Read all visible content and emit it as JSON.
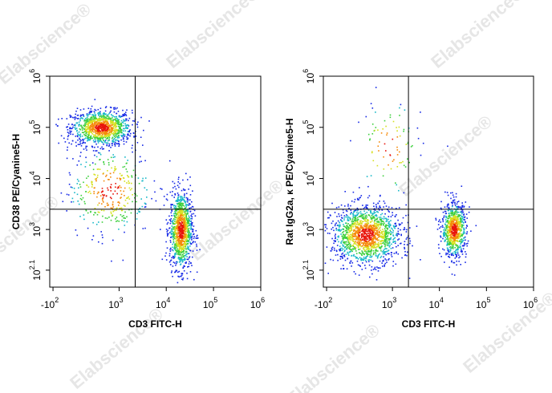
{
  "watermark": "Elabscience®",
  "chart_data": [
    {
      "type": "scatter",
      "x_label": "CD3 FITC-H",
      "y_label": "CD38 PE/Cyanine5-H",
      "scale": "biexponential",
      "xlim": [
        -130,
        1000000
      ],
      "ylim": [
        0,
        1000000
      ],
      "xticks": [
        {
          "value": -100,
          "label": "-10",
          "exponent": "2"
        },
        {
          "value": 1000,
          "label": "10",
          "exponent": "3"
        },
        {
          "value": 10000,
          "label": "10",
          "exponent": "4"
        },
        {
          "value": 100000,
          "label": "10",
          "exponent": "5"
        },
        {
          "value": 1000000,
          "label": "10",
          "exponent": "6"
        }
      ],
      "yticks": [
        {
          "value": 126,
          "label": "10",
          "exponent": "2.1"
        },
        {
          "value": 1000,
          "label": "10",
          "exponent": "3"
        },
        {
          "value": 10000,
          "label": "10",
          "exponent": "4"
        },
        {
          "value": 100000,
          "label": "10",
          "exponent": "5"
        },
        {
          "value": 1000000,
          "label": "10",
          "exponent": "6"
        }
      ],
      "gate_x": 2200,
      "gate_y": 2500,
      "populations": [
        {
          "x": 400,
          "y": 100000,
          "spread_x": 0.32,
          "spread_y": 0.17,
          "count": 1100
        },
        {
          "x": 20000,
          "y": 1000,
          "spread_x": 0.12,
          "spread_y": 0.38,
          "count": 1100
        },
        {
          "x": 600,
          "y": 6000,
          "spread_x": 0.45,
          "spread_y": 0.45,
          "count": 350
        }
      ]
    },
    {
      "type": "scatter",
      "x_label": "CD3 FITC-H",
      "y_label": "Rat IgG2a, κ PE/Cyanine5-H",
      "scale": "biexponential",
      "xlim": [
        -130,
        1000000
      ],
      "ylim": [
        0,
        1000000
      ],
      "xticks": [
        {
          "value": -100,
          "label": "-10",
          "exponent": "2"
        },
        {
          "value": 1000,
          "label": "10",
          "exponent": "3"
        },
        {
          "value": 10000,
          "label": "10",
          "exponent": "4"
        },
        {
          "value": 100000,
          "label": "10",
          "exponent": "5"
        },
        {
          "value": 1000000,
          "label": "10",
          "exponent": "6"
        }
      ],
      "yticks": [
        {
          "value": 126,
          "label": "10",
          "exponent": "2.1"
        },
        {
          "value": 1000,
          "label": "10",
          "exponent": "3"
        },
        {
          "value": 10000,
          "label": "10",
          "exponent": "4"
        },
        {
          "value": 100000,
          "label": "10",
          "exponent": "5"
        },
        {
          "value": 1000000,
          "label": "10",
          "exponent": "6"
        }
      ],
      "gate_x": 2200,
      "gate_y": 2500,
      "populations": [
        {
          "x": 250,
          "y": 800,
          "spread_x": 0.36,
          "spread_y": 0.28,
          "count": 1500
        },
        {
          "x": 20000,
          "y": 1000,
          "spread_x": 0.13,
          "spread_y": 0.26,
          "count": 800
        },
        {
          "x": 800,
          "y": 40000,
          "spread_x": 0.35,
          "spread_y": 0.5,
          "count": 90
        }
      ]
    }
  ]
}
